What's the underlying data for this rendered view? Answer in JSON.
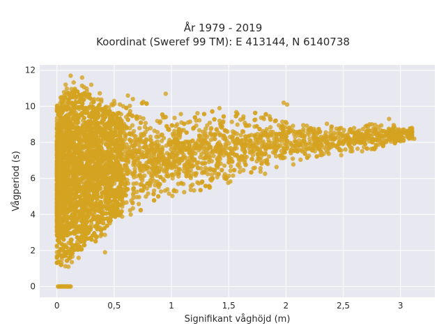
{
  "chart_data": {
    "type": "scatter",
    "title_line1": "År 1979 - 2019",
    "title_line2": "Koordinat (Sweref 99 TM): E 413144, N 6140738",
    "xlabel": "Signifikant våghöjd (m)",
    "ylabel": "Vågperiod (s)",
    "xlim": [
      -0.15,
      3.3
    ],
    "ylim": [
      -0.6,
      12.3
    ],
    "x_ticks": [
      0,
      0.5,
      1,
      1.5,
      2,
      2.5,
      3
    ],
    "x_tick_labels": [
      "0",
      "0,5",
      "1",
      "1,5",
      "2",
      "2,5",
      "3"
    ],
    "y_ticks": [
      0,
      2,
      4,
      6,
      8,
      10,
      12
    ],
    "y_tick_labels": [
      "0",
      "2",
      "4",
      "6",
      "8",
      "10",
      "12"
    ],
    "marker_color": "#d4a320",
    "plot_background": "#e8e8f0",
    "grid": true,
    "legend": "none",
    "envelope": {
      "description_points_x": [
        0.0,
        0.05,
        0.1,
        0.2,
        0.3,
        0.5,
        0.7,
        1.0,
        1.5,
        2.0,
        2.5,
        3.0,
        3.1
      ],
      "upper_y": [
        10.0,
        11.0,
        11.5,
        11.6,
        11.2,
        10.2,
        10.5,
        9.6,
        9.9,
        9.4,
        9.0,
        9.0,
        8.8
      ],
      "lower_y": [
        1.2,
        1.0,
        1.2,
        1.6,
        2.0,
        3.4,
        4.0,
        4.8,
        5.5,
        6.6,
        7.3,
        7.9,
        8.2
      ]
    },
    "zero_period_points": {
      "x": [
        0.01,
        0.02,
        0.03,
        0.04,
        0.05,
        0.06,
        0.07,
        0.08,
        0.09,
        0.1,
        0.11,
        0.12
      ],
      "y": 0
    },
    "sample_points": [
      {
        "x": 0.12,
        "y": 11.7
      },
      {
        "x": 0.22,
        "y": 11.6
      },
      {
        "x": 0.3,
        "y": 11.2
      },
      {
        "x": 0.5,
        "y": 10.3
      },
      {
        "x": 0.62,
        "y": 10.6
      },
      {
        "x": 0.95,
        "y": 10.7
      },
      {
        "x": 1.42,
        "y": 9.9
      },
      {
        "x": 1.98,
        "y": 10.2
      },
      {
        "x": 2.01,
        "y": 10.1
      },
      {
        "x": 2.6,
        "y": 8.3
      },
      {
        "x": 2.75,
        "y": 9.0
      },
      {
        "x": 2.9,
        "y": 9.3
      },
      {
        "x": 3.02,
        "y": 8.7
      },
      {
        "x": 3.1,
        "y": 8.8
      },
      {
        "x": 3.12,
        "y": 8.2
      },
      {
        "x": 2.85,
        "y": 7.9
      },
      {
        "x": 2.3,
        "y": 7.3
      },
      {
        "x": 0.42,
        "y": 1.9
      },
      {
        "x": 0.1,
        "y": 1.1
      },
      {
        "x": 0.04,
        "y": 1.3
      }
    ]
  }
}
